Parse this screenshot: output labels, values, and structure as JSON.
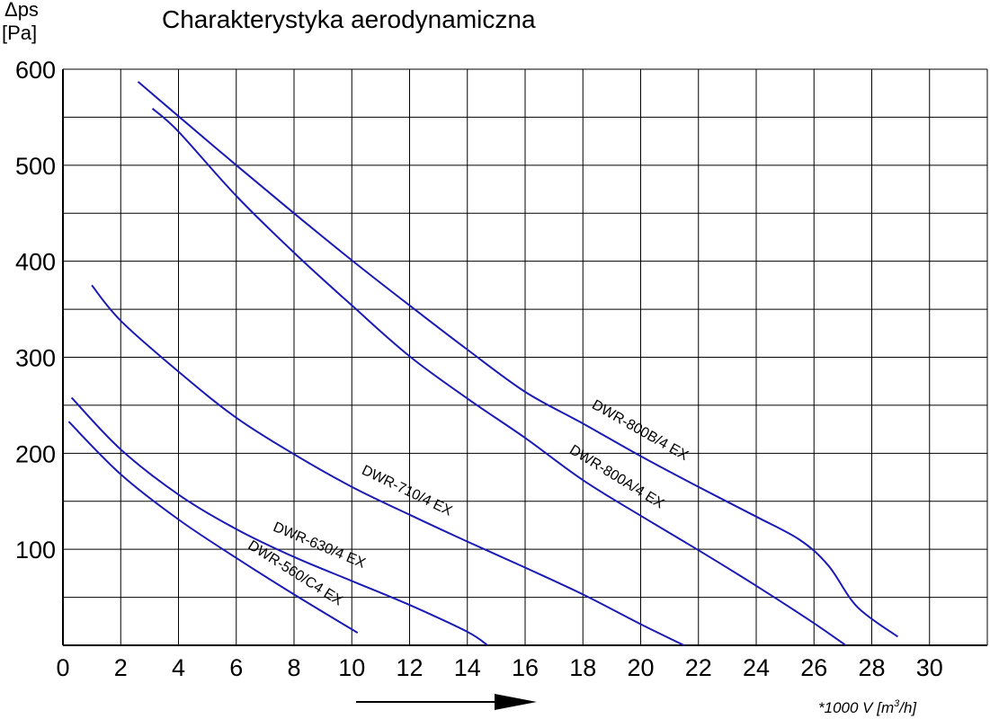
{
  "chart_data": {
    "type": "line",
    "title": "Charakterystyka aerodynamiczna",
    "ylabel_line1": "Δps",
    "ylabel_line2": "[Pa]",
    "xlabel_prefix": "*1000 V [m",
    "xlabel_sup": "3",
    "xlabel_suffix": "/h]",
    "xlim": [
      0,
      32
    ],
    "ylim": [
      0,
      600
    ],
    "grid": true,
    "x_ticks": [
      0,
      2,
      4,
      6,
      8,
      10,
      12,
      14,
      16,
      18,
      20,
      22,
      24,
      26,
      28,
      30
    ],
    "y_ticks": [
      100,
      200,
      300,
      400,
      500,
      600
    ],
    "series_color": "#1a1ab4",
    "series": [
      {
        "name": "DWR-800B/4 EX",
        "x": [
          2.6,
          4,
          6,
          8,
          10,
          12,
          14,
          16,
          18,
          20,
          22,
          24,
          25.5,
          26.5,
          27.5,
          28.9
        ],
        "y": [
          587,
          551,
          500,
          450,
          401,
          354,
          308,
          264,
          231,
          197,
          165,
          134,
          110,
          83,
          40,
          9
        ]
      },
      {
        "name": "DWR-800A/4 EX",
        "x": [
          3.1,
          4,
          6,
          8,
          10,
          12,
          14,
          16,
          18,
          20,
          22,
          24,
          26,
          27.1
        ],
        "y": [
          559,
          535,
          468,
          409,
          354,
          301,
          257,
          216,
          172,
          135,
          99,
          62,
          23,
          0
        ]
      },
      {
        "name": "DWR-710/4 EX",
        "x": [
          1.0,
          2,
          4,
          6,
          8,
          10,
          12,
          14,
          16,
          18,
          20,
          21.5
        ],
        "y": [
          375,
          338,
          285,
          237,
          199,
          165,
          136,
          108,
          81,
          53,
          22,
          0
        ]
      },
      {
        "name": "DWR-630/4 EX",
        "x": [
          0.3,
          2,
          4,
          6,
          8,
          10,
          12,
          14,
          14.7
        ],
        "y": [
          258,
          204,
          157,
          121,
          92,
          67,
          42,
          14,
          0
        ]
      },
      {
        "name": "DWR-560/C4 EX",
        "x": [
          0.2,
          2,
          4,
          6,
          8,
          10.2
        ],
        "y": [
          233,
          178,
          131,
          91,
          53,
          13
        ]
      }
    ]
  }
}
